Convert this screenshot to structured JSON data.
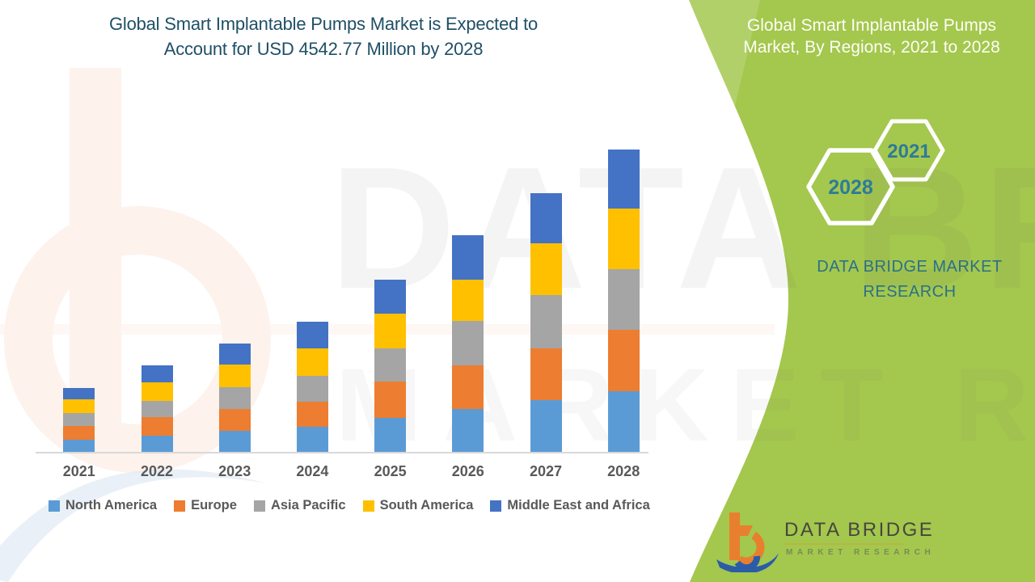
{
  "page": {
    "green_accent": "#A4C74E",
    "teal_accent": "#2B7187",
    "title_color": "#1F4F66",
    "axis_text_color": "#595959"
  },
  "header": {
    "title_line1": "Global Smart Implantable Pumps Market is Expected to",
    "title_line2": "Account for USD 4542.77 Million by 2028"
  },
  "side_panel": {
    "title_line1": "Global Smart Implantable Pumps",
    "title_line2": "Market, By Regions, 2021 to 2028",
    "hexagon_small_label": "2021",
    "hexagon_large_label": "2028",
    "brand_line1": "DATA BRIDGE MARKET",
    "brand_line2": "RESEARCH"
  },
  "logo": {
    "name": "DATA BRIDGE",
    "subtitle": "MARKET RESEARCH"
  },
  "watermark": {
    "line1": "DATA BRIDGE",
    "line2": "MARKET RESEARCH"
  },
  "chart_data": {
    "type": "bar",
    "stacked": true,
    "title": "Global Smart Implantable Pumps Market is Expected to Account for USD 4542.77 Million by 2028",
    "subtitle": "Global Smart Implantable Pumps Market, By Regions, 2021 to 2028",
    "unit": "USD Million",
    "categories": [
      "2021",
      "2022",
      "2023",
      "2024",
      "2025",
      "2026",
      "2027",
      "2028"
    ],
    "series": [
      {
        "name": "North America",
        "color": "#5B9BD5",
        "values": [
          177,
          243,
          316,
          376,
          505,
          647,
          780,
          910
        ]
      },
      {
        "name": "Europe",
        "color": "#ED7D31",
        "values": [
          215,
          279,
          331,
          380,
          546,
          655,
          768,
          922
        ]
      },
      {
        "name": "Asia Pacific",
        "color": "#A5A5A5",
        "values": [
          194,
          246,
          324,
          388,
          498,
          668,
          810,
          910
        ]
      },
      {
        "name": "South America",
        "color": "#FFC000",
        "values": [
          198,
          279,
          335,
          413,
          527,
          611,
          777,
          910
        ]
      },
      {
        "name": "Middle East and Africa",
        "color": "#4472C4",
        "values": [
          175,
          255,
          320,
          392,
          513,
          676,
          749,
          890.77
        ]
      }
    ],
    "totals": [
      959,
      1302,
      1626,
      1949,
      2589,
      3257,
      3884,
      4542.77
    ],
    "highlight_value": "USD 4542.77 Million by 2028",
    "xlabel": "",
    "ylabel": "",
    "ylim": [
      0,
      4700
    ],
    "gridlines": false,
    "y_axis_shown": false,
    "legend_position": "bottom"
  }
}
